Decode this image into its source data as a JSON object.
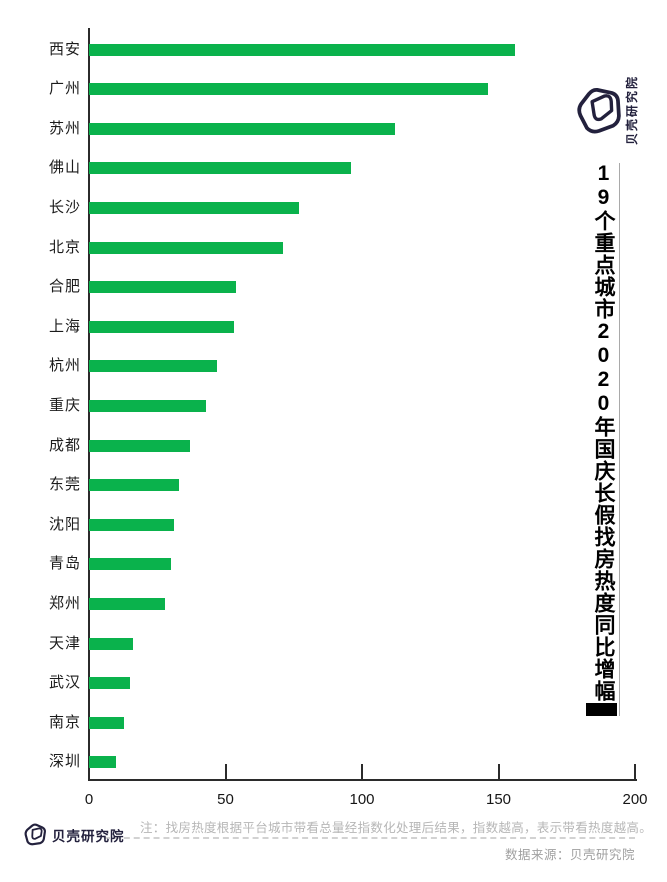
{
  "colors": {
    "bar": "#0ab24c",
    "axis": "#2b2b2b",
    "title": "#000000",
    "note": "#b6b6b6",
    "source": "#a0a0a0",
    "logo": "#23213d",
    "title_rule": "#a9a9a9",
    "dashed_rule": "#d2d2d2"
  },
  "header_logo": {
    "text": "贝壳研究院"
  },
  "title": {
    "text": "19个重点城市2020年国庆长假找房热度同比增幅"
  },
  "footer": {
    "note": "注：找房热度根据平台城市带看总量经指数化处理后结果，指数越高，表示带看热度越高。",
    "source": "数据来源：贝壳研究院",
    "logo_text": "贝壳研究院"
  },
  "chart_data": {
    "type": "bar",
    "orientation": "horizontal",
    "title": "19个重点城市2020年国庆长假找房热度同比增幅",
    "categories": [
      "西安",
      "广州",
      "苏州",
      "佛山",
      "长沙",
      "北京",
      "合肥",
      "上海",
      "杭州",
      "重庆",
      "成都",
      "东莞",
      "沈阳",
      "青岛",
      "郑州",
      "天津",
      "武汉",
      "南京",
      "深圳"
    ],
    "values": [
      156,
      146,
      112,
      96,
      77,
      71,
      54,
      53,
      47,
      43,
      37,
      33,
      31,
      30,
      28,
      16,
      15,
      13,
      10
    ],
    "xlabel": "",
    "ylabel": "",
    "xlim": [
      0,
      200
    ],
    "xticks": [
      0,
      50,
      100,
      150,
      200
    ],
    "grid": false,
    "legend": false,
    "bar_color": "#0ab24c"
  }
}
